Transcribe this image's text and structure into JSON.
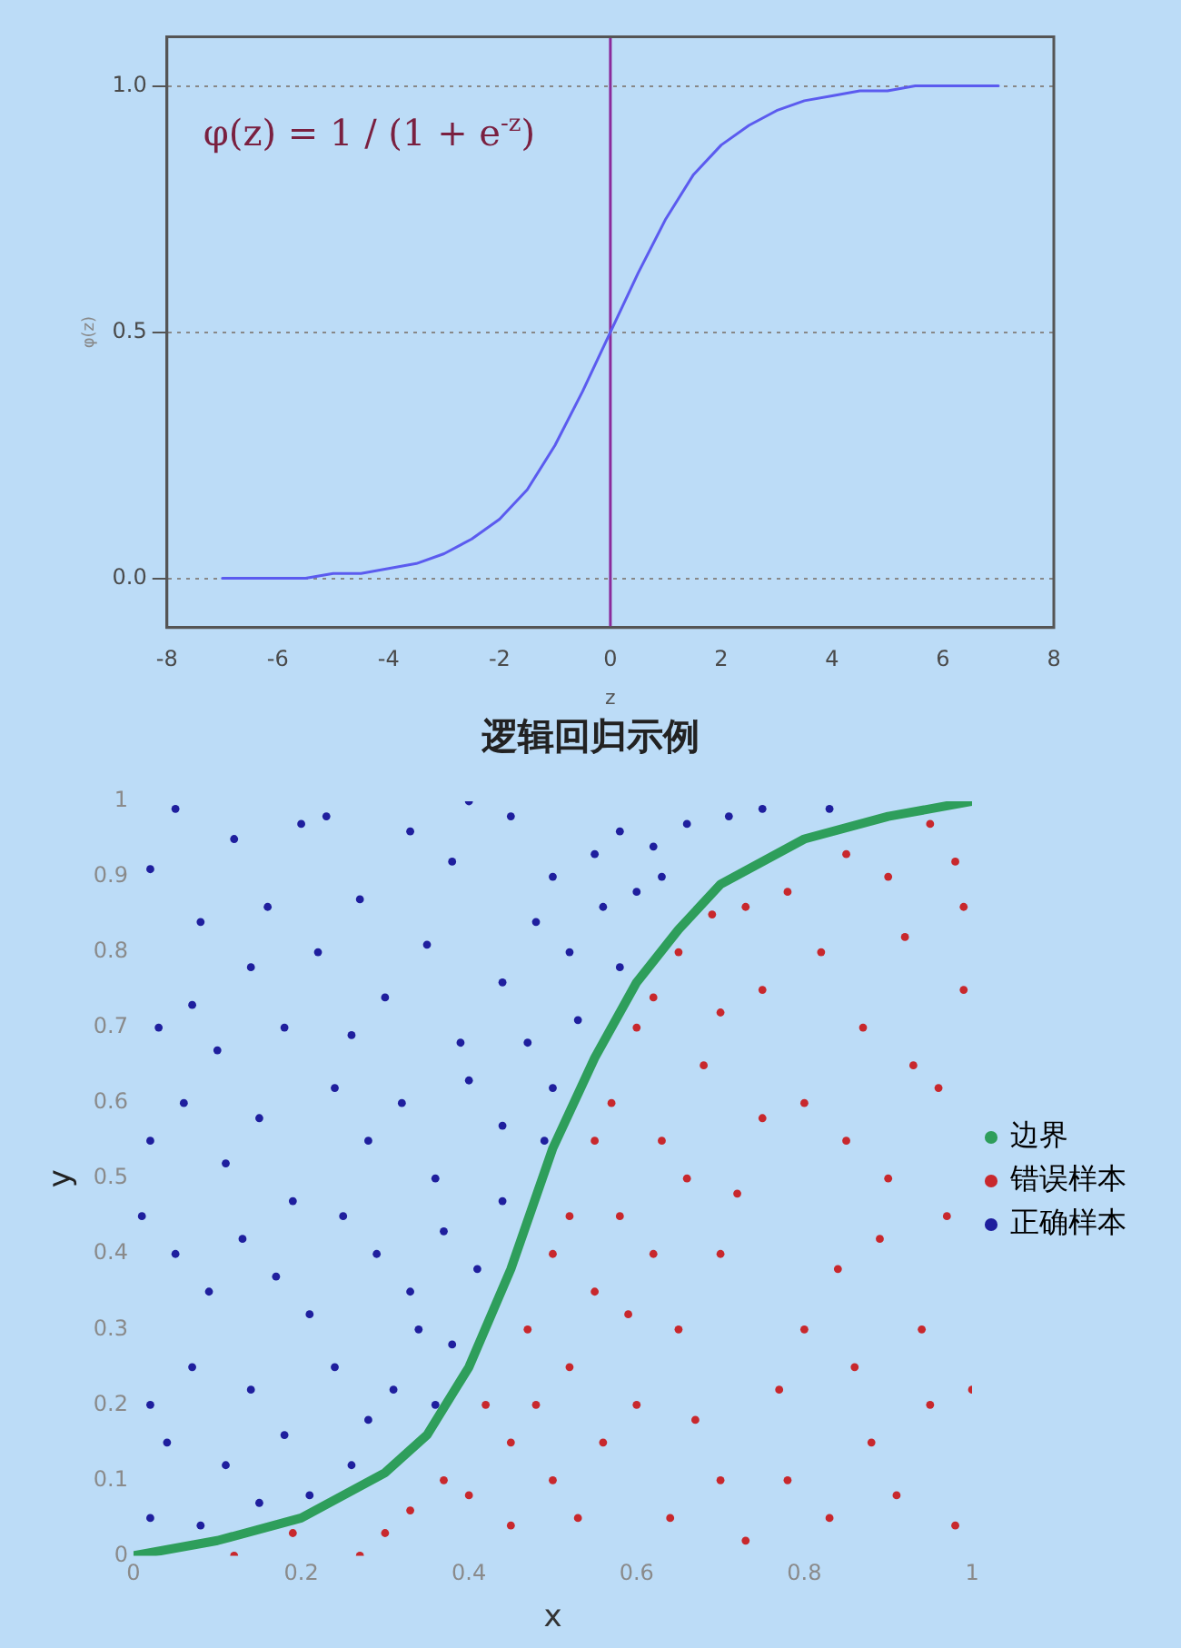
{
  "chart_data": [
    {
      "type": "line",
      "xlabel": "z",
      "ylabel": "φ(z)",
      "xlim": [
        -8,
        8
      ],
      "xticks": [
        -8,
        -6,
        -4,
        -2,
        0,
        2,
        4,
        6,
        8
      ],
      "ylim": [
        -0.1,
        1.1
      ],
      "yticks": [
        {
          "value": 0,
          "label": "0.0"
        },
        {
          "value": 0.5,
          "label": "0.5"
        },
        {
          "value": 1,
          "label": "1.0"
        }
      ],
      "grid": "y",
      "legend": false,
      "marker": "none",
      "line_style": "solid",
      "annotations": [
        "φ(z) = 1 / (1 + e$^{-z}$)"
      ],
      "ref_lines": [
        {
          "axis": "x",
          "value": 0,
          "color": "#8b2a9b"
        }
      ],
      "x": [
        -7,
        -6.5,
        -6,
        -5.5,
        -5,
        -4.5,
        -4,
        -3.5,
        -3,
        -2.5,
        -2,
        -1.5,
        -1,
        -0.5,
        0,
        0.5,
        1,
        1.5,
        2,
        2.5,
        3,
        3.5,
        4,
        4.5,
        5,
        5.5,
        6,
        6.5,
        7
      ],
      "series": [
        {
          "color": "#5b5bef",
          "values": [
            0,
            0,
            0,
            0,
            0.01,
            0.01,
            0.02,
            0.03,
            0.05,
            0.08,
            0.12,
            0.18,
            0.27,
            0.38,
            0.5,
            0.62,
            0.73,
            0.82,
            0.88,
            0.92,
            0.95,
            0.97,
            0.98,
            0.99,
            0.99,
            1,
            1,
            1,
            1
          ]
        }
      ]
    },
    {
      "type": "scatter",
      "title": "逻辑回归示例",
      "xlabel": "x",
      "ylabel": "y",
      "xlim": [
        0,
        1
      ],
      "xticks": [
        0,
        0.2,
        0.4,
        0.6,
        0.8,
        1
      ],
      "ylim": [
        0,
        1
      ],
      "yticks": [
        0,
        0.1,
        0.2,
        0.3,
        0.4,
        0.5,
        0.6,
        0.7,
        0.8,
        0.9,
        1
      ],
      "grid": false,
      "legend": "right",
      "marker": "circle",
      "series": [
        {
          "name": "边界",
          "type": "line",
          "marker": "none",
          "color": "#2e9e5b",
          "x": [
            0,
            0.1,
            0.2,
            0.3,
            0.35,
            0.4,
            0.45,
            0.5,
            0.55,
            0.6,
            0.65,
            0.7,
            0.8,
            0.9,
            1
          ],
          "values": [
            0,
            0.02,
            0.05,
            0.11,
            0.16,
            0.25,
            0.38,
            0.54,
            0.66,
            0.76,
            0.83,
            0.89,
            0.95,
            0.98,
            1
          ]
        },
        {
          "name": "错误样本",
          "color": "#c8282d",
          "x": [
            0.12,
            0.19,
            0.27,
            0.3,
            0.33,
            0.37,
            0.4,
            0.42,
            0.45,
            0.47,
            0.5,
            0.52,
            0.55,
            0.57,
            0.6,
            0.62,
            0.65,
            0.69,
            0.73,
            0.78,
            0.85,
            0.9,
            0.95,
            0.98,
            0.45,
            0.5,
            0.52,
            0.55,
            0.58,
            0.6,
            0.63,
            0.65,
            0.68,
            0.7,
            0.72,
            0.75,
            0.77,
            0.8,
            0.82,
            0.84,
            0.87,
            0.88,
            0.9,
            0.92,
            0.94,
            0.96,
            0.98,
            0.99,
            0.48,
            0.53,
            0.56,
            0.59,
            0.62,
            0.64,
            0.67,
            0.7,
            0.73,
            0.75,
            0.78,
            0.8,
            0.83,
            0.85,
            0.86,
            0.89,
            0.91,
            0.93,
            0.95,
            0.97,
            1,
            0.99,
            0.7,
            0.66
          ],
          "values": [
            0,
            0.03,
            0,
            0.03,
            0.06,
            0.1,
            0.08,
            0.2,
            0.15,
            0.3,
            0.4,
            0.45,
            0.55,
            0.6,
            0.7,
            0.74,
            0.8,
            0.85,
            0.86,
            0.88,
            0.93,
            0.9,
            0.97,
            0.92,
            0.04,
            0.1,
            0.25,
            0.35,
            0.45,
            0.2,
            0.55,
            0.3,
            0.65,
            0.1,
            0.48,
            0.75,
            0.22,
            0.6,
            0.8,
            0.38,
            0.7,
            0.15,
            0.5,
            0.82,
            0.3,
            0.62,
            0.04,
            0.75,
            0.2,
            0.05,
            0.15,
            0.32,
            0.4,
            0.05,
            0.18,
            0.4,
            0.02,
            0.58,
            0.1,
            0.3,
            0.05,
            0.55,
            0.25,
            0.42,
            0.08,
            0.65,
            0.2,
            0.45,
            0.22,
            0.86,
            0.72,
            0.5
          ]
        },
        {
          "name": "正确样本",
          "color": "#1f1f9e",
          "x": [
            0.02,
            0.05,
            0.08,
            0.12,
            0.16,
            0.2,
            0.23,
            0.27,
            0.33,
            0.38,
            0.4,
            0.45,
            0.5,
            0.55,
            0.58,
            0.62,
            0.66,
            0.71,
            0.75,
            0.83,
            0.03,
            0.07,
            0.1,
            0.14,
            0.18,
            0.22,
            0.26,
            0.3,
            0.35,
            0.39,
            0.44,
            0.48,
            0.52,
            0.56,
            0.6,
            0.63,
            0.58,
            0.02,
            0.06,
            0.11,
            0.15,
            0.19,
            0.24,
            0.28,
            0.32,
            0.36,
            0.4,
            0.44,
            0.47,
            0.5,
            0.53,
            0.49,
            0.01,
            0.05,
            0.09,
            0.13,
            0.17,
            0.21,
            0.25,
            0.29,
            0.33,
            0.37,
            0.41,
            0.44,
            0.38,
            0.02,
            0.04,
            0.07,
            0.11,
            0.14,
            0.18,
            0.21,
            0.24,
            0.28,
            0.31,
            0.34,
            0.36,
            0.02,
            0.08,
            0.15,
            0.26
          ],
          "values": [
            0.91,
            0.99,
            0.84,
            0.95,
            0.86,
            0.97,
            0.98,
            0.87,
            0.96,
            0.92,
            1,
            0.98,
            0.9,
            0.93,
            0.96,
            0.94,
            0.97,
            0.98,
            0.99,
            0.99,
            0.7,
            0.73,
            0.67,
            0.78,
            0.7,
            0.8,
            0.69,
            0.74,
            0.81,
            0.68,
            0.76,
            0.84,
            0.8,
            0.86,
            0.88,
            0.9,
            0.78,
            0.55,
            0.6,
            0.52,
            0.58,
            0.47,
            0.62,
            0.55,
            0.6,
            0.5,
            0.63,
            0.57,
            0.68,
            0.62,
            0.71,
            0.55,
            0.45,
            0.4,
            0.35,
            0.42,
            0.37,
            0.32,
            0.45,
            0.4,
            0.35,
            0.43,
            0.38,
            0.47,
            0.28,
            0.2,
            0.15,
            0.25,
            0.12,
            0.22,
            0.16,
            0.08,
            0.25,
            0.18,
            0.22,
            0.3,
            0.2,
            0.05,
            0.04,
            0.07,
            0.12
          ]
        }
      ]
    }
  ]
}
